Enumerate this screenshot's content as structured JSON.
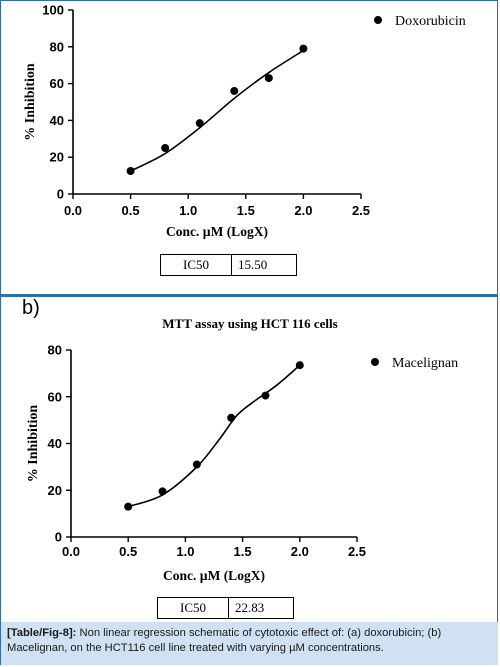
{
  "panel_b_label": "b)",
  "chart_data": [
    {
      "type": "scatter",
      "title": "",
      "xlabel": "Conc. µM (LogX)",
      "ylabel": "% Inhibition",
      "xlim": [
        0.0,
        2.5
      ],
      "ylim": [
        0,
        100
      ],
      "xticks": [
        "0.0",
        "0.5",
        "1.0",
        "1.5",
        "2.0",
        "2.5"
      ],
      "yticks": [
        "0",
        "20",
        "40",
        "60",
        "80",
        "100"
      ],
      "grid": false,
      "legend_position": "top-right",
      "series": [
        {
          "name": "Doxorubicin",
          "points": [
            [
              0.5,
              12.5
            ],
            [
              0.8,
              25
            ],
            [
              1.1,
              38.5
            ],
            [
              1.4,
              56
            ],
            [
              1.7,
              63
            ],
            [
              2.0,
              79
            ]
          ],
          "fit_curve": [
            [
              0.5,
              12.5
            ],
            [
              0.8,
              22
            ],
            [
              1.1,
              36
            ],
            [
              1.4,
              52
            ],
            [
              1.7,
              66
            ],
            [
              2.0,
              78
            ]
          ]
        }
      ],
      "ic50": {
        "label": "IC50",
        "value": "15.50"
      }
    },
    {
      "type": "scatter",
      "title": "MTT assay using HCT 116 cells",
      "xlabel": "Conc. µM (LogX)",
      "ylabel": "% Inhibition",
      "xlim": [
        0.0,
        2.5
      ],
      "ylim": [
        0,
        80
      ],
      "xticks": [
        "0.0",
        "0.5",
        "1.0",
        "1.5",
        "2.0",
        "2.5"
      ],
      "yticks": [
        "0",
        "20",
        "40",
        "60",
        "80"
      ],
      "grid": false,
      "legend_position": "top-right",
      "series": [
        {
          "name": "Macelignan",
          "points": [
            [
              0.5,
              13
            ],
            [
              0.8,
              19.5
            ],
            [
              1.1,
              31
            ],
            [
              1.4,
              51
            ],
            [
              1.7,
              60.5
            ],
            [
              2.0,
              73.5
            ]
          ],
          "fit_curve": [
            [
              0.5,
              13
            ],
            [
              0.8,
              18
            ],
            [
              1.1,
              30
            ],
            [
              1.3,
              42
            ],
            [
              1.45,
              52
            ],
            [
              1.6,
              58
            ],
            [
              1.8,
              65
            ],
            [
              2.0,
              73.5
            ]
          ]
        }
      ],
      "ic50": {
        "label": "IC50",
        "value": "22.83"
      }
    }
  ],
  "caption": {
    "prefix": "[Table/Fig-8]:",
    "text": " Non linear regression schematic of cytotoxic effect of: (a) doxorubicin; (b) Macelignan, on the HCT116 cell line treated with varying µM concentrations."
  },
  "colors": {
    "accent": "#2f6fa8",
    "caption_bg": "#cfe1f2"
  }
}
